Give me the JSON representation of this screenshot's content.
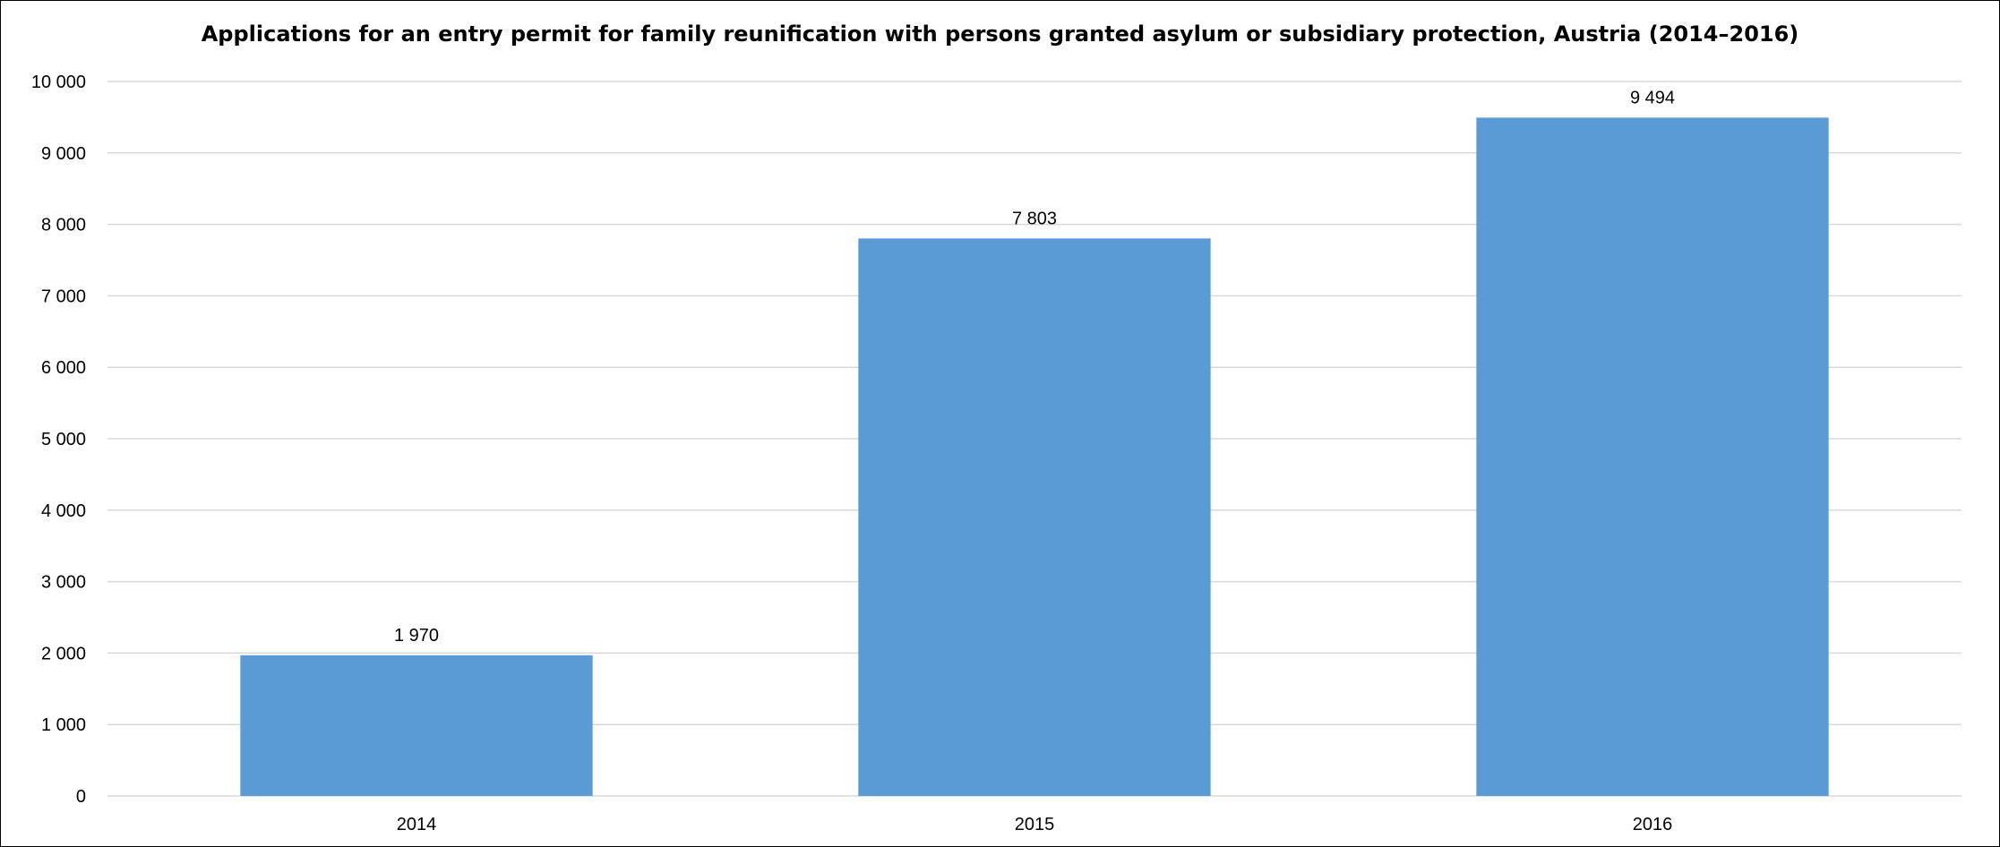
{
  "chart_data": {
    "type": "bar",
    "title": "Applications for an entry permit for family reunification with persons granted asylum or subsidiary protection, Austria (2014–2016)",
    "categories": [
      "2014",
      "2015",
      "2016"
    ],
    "values": [
      1970,
      7803,
      9494
    ],
    "data_labels": [
      "1 970",
      "7 803",
      "9 494"
    ],
    "y_ticks": [
      0,
      1000,
      2000,
      3000,
      4000,
      5000,
      6000,
      7000,
      8000,
      9000,
      10000
    ],
    "y_tick_labels": [
      "0",
      "1 000",
      "2 000",
      "3 000",
      "4 000",
      "5 000",
      "6 000",
      "7 000",
      "8 000",
      "9 000",
      "10 000"
    ],
    "ylim": [
      0,
      10000
    ],
    "grid": true,
    "legend": "none",
    "bar_color": "#5b9bd5",
    "grid_color": "#d9d9d9"
  }
}
